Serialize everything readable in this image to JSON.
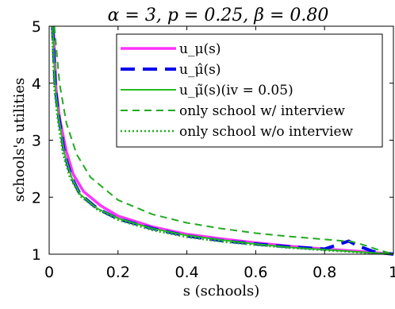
{
  "chart_data": {
    "type": "line",
    "title": "α = 3, p = 0.25, β = 0.80",
    "xlabel": "s (schools)",
    "ylabel": "schools's utilities",
    "xlim": [
      0,
      1
    ],
    "ylim": [
      1,
      5
    ],
    "xticks": [
      0,
      0.2,
      0.4,
      0.6,
      0.8,
      1
    ],
    "xtick_labels": [
      "0",
      "0.2",
      "0.4",
      "0.6",
      "0.8",
      "1"
    ],
    "yticks": [
      1,
      2,
      3,
      4,
      5
    ],
    "ytick_labels": [
      "1",
      "2",
      "3",
      "4",
      "5"
    ],
    "grid": false,
    "legend_position": "top-right",
    "series": [
      {
        "name": "u_μ(s)",
        "color": "#ff33ff",
        "dash": "solid",
        "points": [
          [
            0.012,
            5.0
          ],
          [
            0.02,
            3.9
          ],
          [
            0.03,
            3.4
          ],
          [
            0.05,
            2.8
          ],
          [
            0.07,
            2.4
          ],
          [
            0.1,
            2.1
          ],
          [
            0.15,
            1.85
          ],
          [
            0.2,
            1.67
          ],
          [
            0.3,
            1.48
          ],
          [
            0.4,
            1.35
          ],
          [
            0.5,
            1.27
          ],
          [
            0.6,
            1.2
          ],
          [
            0.7,
            1.14
          ],
          [
            0.8,
            1.09
          ],
          [
            0.9,
            1.05
          ],
          [
            1.0,
            1.0
          ]
        ]
      },
      {
        "name": "u_μ̂(s)",
        "color": "#0000ee",
        "dash": "long-dash",
        "points": [
          [
            0.01,
            5.0
          ],
          [
            0.018,
            3.9
          ],
          [
            0.028,
            3.4
          ],
          [
            0.045,
            2.75
          ],
          [
            0.065,
            2.35
          ],
          [
            0.09,
            2.05
          ],
          [
            0.14,
            1.8
          ],
          [
            0.2,
            1.62
          ],
          [
            0.3,
            1.45
          ],
          [
            0.4,
            1.32
          ],
          [
            0.5,
            1.24
          ],
          [
            0.6,
            1.18
          ],
          [
            0.7,
            1.13
          ],
          [
            0.8,
            1.09
          ],
          [
            0.87,
            1.23
          ],
          [
            0.9,
            1.14
          ],
          [
            0.94,
            1.05
          ],
          [
            1.0,
            1.0
          ]
        ]
      },
      {
        "name": "u_μ̃(s)(iv = 0.05)",
        "color": "#22bb22",
        "dash": "solid",
        "points": [
          [
            0.01,
            5.0
          ],
          [
            0.018,
            3.9
          ],
          [
            0.028,
            3.38
          ],
          [
            0.045,
            2.75
          ],
          [
            0.065,
            2.35
          ],
          [
            0.09,
            2.05
          ],
          [
            0.14,
            1.8
          ],
          [
            0.2,
            1.63
          ],
          [
            0.3,
            1.45
          ],
          [
            0.4,
            1.33
          ],
          [
            0.5,
            1.25
          ],
          [
            0.6,
            1.18
          ],
          [
            0.7,
            1.12
          ],
          [
            0.8,
            1.08
          ],
          [
            0.9,
            1.04
          ],
          [
            1.0,
            1.0
          ]
        ]
      },
      {
        "name": "only school w/ interview",
        "color": "#22aa22",
        "dash": "dashed",
        "points": [
          [
            0.015,
            5.0
          ],
          [
            0.03,
            4.0
          ],
          [
            0.05,
            3.3
          ],
          [
            0.08,
            2.75
          ],
          [
            0.12,
            2.35
          ],
          [
            0.2,
            1.95
          ],
          [
            0.3,
            1.7
          ],
          [
            0.4,
            1.55
          ],
          [
            0.5,
            1.45
          ],
          [
            0.6,
            1.37
          ],
          [
            0.7,
            1.31
          ],
          [
            0.8,
            1.26
          ],
          [
            0.88,
            1.22
          ],
          [
            0.92,
            1.15
          ],
          [
            0.96,
            1.07
          ],
          [
            1.0,
            1.0
          ]
        ]
      },
      {
        "name": "only school w/o interview",
        "color": "#22aa22",
        "dash": "dotted",
        "points": [
          [
            0.008,
            5.0
          ],
          [
            0.015,
            3.9
          ],
          [
            0.025,
            3.35
          ],
          [
            0.04,
            2.75
          ],
          [
            0.06,
            2.35
          ],
          [
            0.09,
            2.02
          ],
          [
            0.14,
            1.78
          ],
          [
            0.2,
            1.6
          ],
          [
            0.3,
            1.42
          ],
          [
            0.4,
            1.3
          ],
          [
            0.5,
            1.22
          ],
          [
            0.6,
            1.16
          ],
          [
            0.7,
            1.11
          ],
          [
            0.8,
            1.07
          ],
          [
            0.9,
            1.03
          ],
          [
            1.0,
            1.0
          ]
        ]
      }
    ]
  }
}
